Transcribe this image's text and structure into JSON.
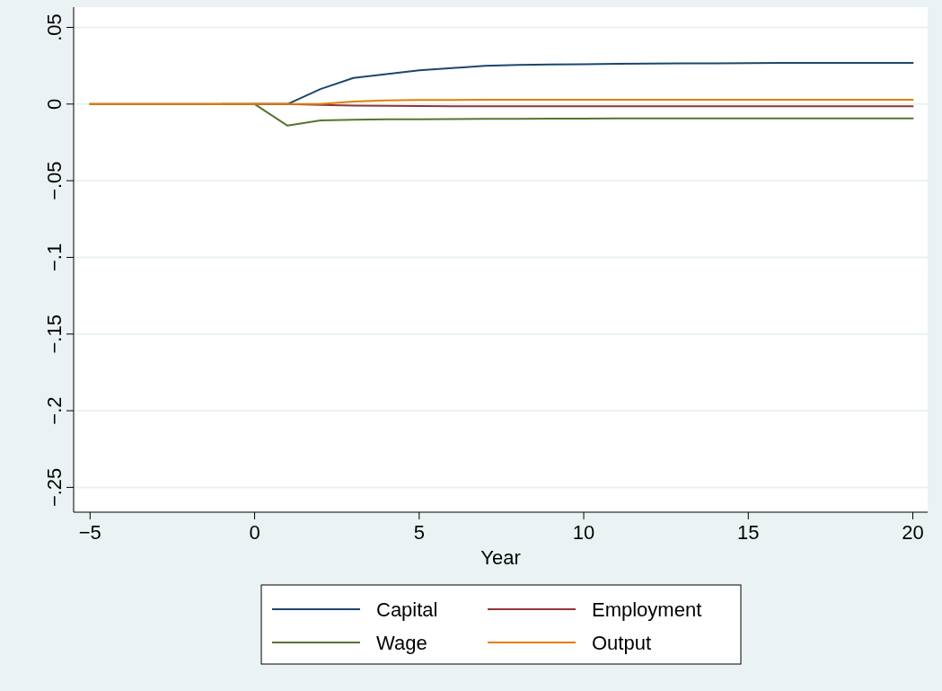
{
  "chart_data": {
    "type": "line",
    "xlabel": "Year",
    "x": [
      -5,
      -4,
      -3,
      -2,
      -1,
      0,
      1,
      2,
      3,
      4,
      5,
      6,
      7,
      8,
      9,
      10,
      11,
      12,
      13,
      14,
      15,
      16,
      17,
      18,
      19,
      20
    ],
    "xlim": [
      -5.5,
      20.45
    ],
    "xticks": [
      {
        "value": -5,
        "label": "−5"
      },
      0,
      5,
      10,
      15,
      20
    ],
    "ylim": [
      -0.265,
      0.062
    ],
    "yticks": [
      {
        "value": 0.05,
        "label": ".05"
      },
      0,
      {
        "value": -0.05,
        "label": "−.05"
      },
      {
        "value": -0.1,
        "label": "−.1"
      },
      {
        "value": -0.15,
        "label": "−.15"
      },
      {
        "value": -0.2,
        "label": "−.2"
      },
      {
        "value": -0.25,
        "label": "−.25"
      }
    ],
    "grid": "y",
    "legend": "bottom",
    "line_style": "solid",
    "marker": "none",
    "series": [
      {
        "name": "Capital",
        "color": "#1a476f",
        "values": [
          null,
          null,
          null,
          null,
          null,
          0,
          0,
          0.0098,
          0.017,
          0.0195,
          0.022,
          0.0235,
          0.0249,
          0.0255,
          0.0258,
          0.026,
          0.0262,
          0.0264,
          0.0265,
          0.0266,
          0.0267,
          0.0268,
          0.0268,
          0.0269,
          0.0269,
          0.0269
        ]
      },
      {
        "name": "Employment",
        "color": "#90353b",
        "values": [
          0,
          0,
          0,
          0,
          0,
          0,
          0,
          -0.0005,
          -0.001,
          -0.0012,
          -0.0013,
          -0.0014,
          -0.0014,
          -0.0014,
          -0.0014,
          -0.0014,
          -0.0014,
          -0.0014,
          -0.0014,
          -0.0014,
          -0.0014,
          -0.0014,
          -0.0014,
          -0.0014,
          -0.0014,
          -0.0014
        ]
      },
      {
        "name": "Wage",
        "color": "#55752f",
        "values": [
          null,
          null,
          null,
          null,
          0,
          0,
          -0.0141,
          -0.0107,
          -0.0102,
          -0.01,
          -0.0099,
          -0.0098,
          -0.0097,
          -0.0096,
          -0.0095,
          -0.0095,
          -0.0094,
          -0.0094,
          -0.0094,
          -0.0093,
          -0.0093,
          -0.0093,
          -0.0093,
          -0.0093,
          -0.0093,
          -0.0093
        ]
      },
      {
        "name": "Output",
        "color": "#e37e00",
        "values": [
          0,
          0,
          0,
          0,
          0,
          0,
          0,
          0,
          0.0016,
          0.0024,
          0.0026,
          0.0027,
          0.0028,
          0.0028,
          0.0028,
          0.0028,
          0.0028,
          0.0028,
          0.0028,
          0.0028,
          0.0028,
          0.0028,
          0.0028,
          0.0028,
          0.0028,
          0.0028
        ]
      }
    ]
  }
}
